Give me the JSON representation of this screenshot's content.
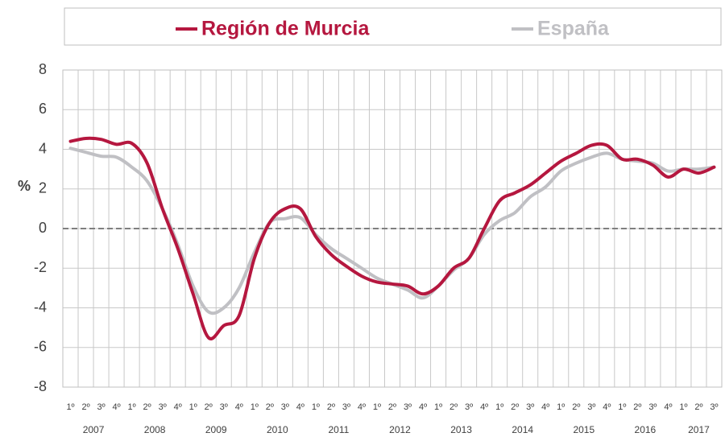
{
  "chart_data": {
    "type": "line",
    "categories": [
      "1º",
      "2º",
      "3º",
      "4º",
      "1º",
      "2º",
      "3º",
      "4º",
      "1º",
      "2º",
      "3º",
      "4º",
      "1º",
      "2º",
      "3º",
      "4º",
      "1º",
      "2º",
      "3º",
      "4º",
      "1º",
      "2º",
      "3º",
      "4º",
      "1º",
      "2º",
      "3º",
      "4º",
      "1º",
      "2º",
      "3º",
      "4º",
      "1º",
      "2º",
      "3º",
      "4º",
      "1º",
      "2º",
      "3º",
      "4º",
      "1º",
      "2º",
      "3º"
    ],
    "years": [
      "2007",
      "2008",
      "2009",
      "2010",
      "2011",
      "2012",
      "2013",
      "2014",
      "2015",
      "2016",
      "2017"
    ],
    "ylabel": "%",
    "ylim": [
      -8,
      8
    ],
    "yticks": [
      -8,
      -6,
      -4,
      -2,
      0,
      2,
      4,
      6,
      8
    ],
    "reference_line": 0,
    "grid": true,
    "series": [
      {
        "name": "Región de Murcia",
        "color": "#b5173f",
        "values": [
          4.4,
          4.55,
          4.5,
          4.25,
          4.3,
          3.3,
          1.0,
          -1.0,
          -3.3,
          -5.5,
          -4.9,
          -4.4,
          -1.5,
          0.3,
          1.0,
          1.0,
          -0.4,
          -1.3,
          -1.9,
          -2.4,
          -2.7,
          -2.8,
          -2.9,
          -3.3,
          -2.9,
          -2.0,
          -1.5,
          0.0,
          1.4,
          1.8,
          2.2,
          2.8,
          3.4,
          3.8,
          4.2,
          4.2,
          3.5,
          3.5,
          3.2,
          2.6,
          3.0,
          2.8,
          3.1
        ]
      },
      {
        "name": "España",
        "color": "#c0c0c4",
        "values": [
          4.05,
          3.85,
          3.65,
          3.6,
          3.1,
          2.4,
          1.0,
          -0.8,
          -2.9,
          -4.2,
          -4.0,
          -3.0,
          -1.2,
          0.3,
          0.5,
          0.55,
          -0.3,
          -1.0,
          -1.5,
          -2.0,
          -2.5,
          -2.8,
          -3.1,
          -3.5,
          -2.9,
          -2.1,
          -1.5,
          -0.3,
          0.4,
          0.8,
          1.6,
          2.1,
          2.9,
          3.3,
          3.6,
          3.8,
          3.5,
          3.4,
          3.3,
          2.9,
          3.0,
          3.0,
          3.1
        ]
      }
    ]
  }
}
